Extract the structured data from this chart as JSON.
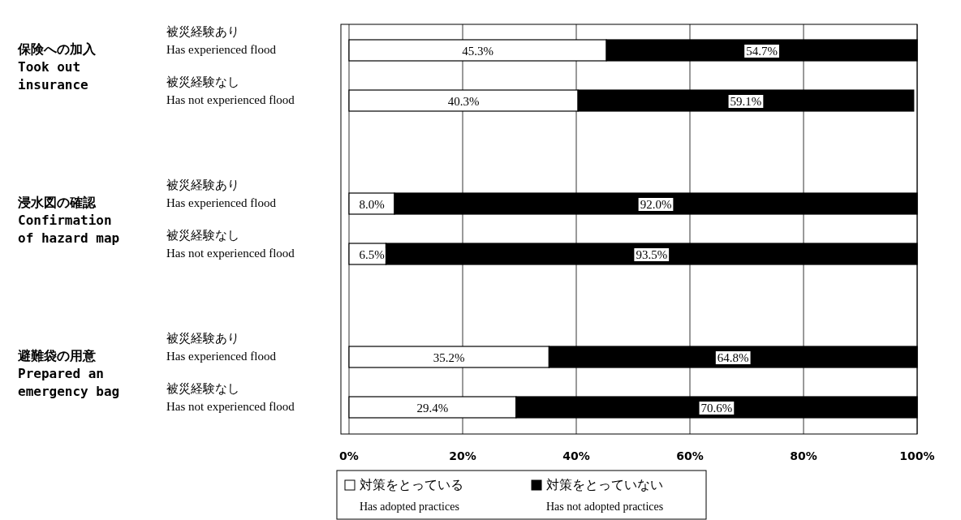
{
  "chart_data": {
    "type": "bar",
    "orientation": "horizontal",
    "stacked": true,
    "categories": [
      "被災経験あり\nHas experienced flood",
      "被災経験なし\nHas not experienced flood",
      "被災経験あり\nHas experienced flood",
      "被災経験なし\nHas not experienced flood",
      "被災経験あり\nHas experienced flood",
      "被災経験なし\nHas not experienced flood"
    ],
    "series": [
      {
        "name": "対策をとっている\nHas adopted practices",
        "color": "#ffffff",
        "values": [
          45.3,
          40.3,
          8.0,
          6.5,
          35.2,
          29.4
        ],
        "value_labels": [
          "45.3%",
          "40.3%",
          "8.0%",
          "6.5%",
          "35.2%",
          "29.4%"
        ]
      },
      {
        "name": "対策をとっていない\nHas not adopted practices",
        "color": "#000000",
        "values": [
          54.7,
          59.1,
          92.0,
          93.5,
          64.8,
          70.6
        ],
        "value_labels": [
          "54.7%",
          "59.1%",
          "92.0%",
          "93.5%",
          "64.8%",
          "70.6%"
        ]
      }
    ],
    "annotations": [
      "保険への加入\nTook out\ninsurance",
      "浸水図の確認\nConfirmation\nof hazard map",
      "避難袋の用意\nPrepared an\nemergency bag"
    ],
    "xlim": [
      0,
      100
    ],
    "xticks": [
      {
        "value": 0,
        "label": "0%"
      },
      {
        "value": 20,
        "label": "20%"
      },
      {
        "value": 40,
        "label": "40%"
      },
      {
        "value": 60,
        "label": "60%"
      },
      {
        "value": 80,
        "label": "80%"
      },
      {
        "value": 100,
        "label": "100%"
      }
    ],
    "grid": "x",
    "legend": "bottom"
  }
}
